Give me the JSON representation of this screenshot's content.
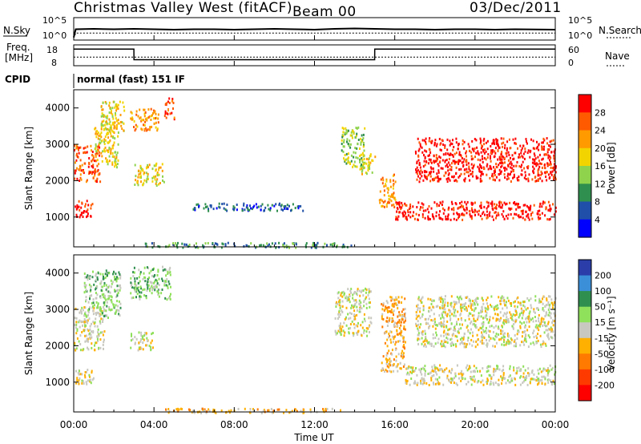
{
  "header": {
    "station": "Christmas Valley West (fitACF)",
    "beam": "Beam 00",
    "date": "03/Dec/2011"
  },
  "sidepanel": {
    "nsky_label": "N.Sky",
    "nsearch_label": "N.Search",
    "freq_label_1": "Freq.",
    "freq_label_2": "[MHz]",
    "nave_label": "Nave",
    "cpid_label": "CPID",
    "cpid_text": "normal (fast) 151 IF",
    "noise_ticks": [
      "10^5",
      "10^0"
    ],
    "freq_ticks": [
      "18",
      "8"
    ],
    "nave_ticks": [
      "60",
      "0"
    ]
  },
  "chart_data": [
    {
      "type": "line",
      "name": "noise",
      "ylabel_left": "N.Sky",
      "ylabel_right": "N.Search",
      "x": [
        0,
        0.1,
        1,
        2,
        3,
        4,
        5,
        6,
        7,
        8,
        9,
        10,
        11,
        12,
        13,
        14,
        15,
        16,
        17,
        18,
        19,
        20,
        21,
        22,
        24
      ],
      "series": [
        {
          "name": "N.Sky",
          "values": [
            0.3,
            2.4,
            2.5,
            2.4,
            2.5,
            2.4,
            2.3,
            2.4,
            2.4,
            2.3,
            2.4,
            2.5,
            2.4,
            2.3,
            2.5,
            2.6,
            2.5,
            2.4,
            2.4,
            2.3,
            2.4,
            2.4,
            2.3,
            2.4,
            2.3
          ]
        },
        {
          "name": "N.Search",
          "values": [
            0.1,
            1.4,
            1.4,
            1.4,
            1.4,
            1.4,
            1.4,
            1.4,
            1.4,
            1.4,
            1.4,
            1.4,
            1.4,
            1.4,
            1.4,
            1.4,
            1.4,
            1.4,
            1.4,
            1.4,
            1.4,
            1.4,
            1.4,
            1.4,
            1.4
          ]
        }
      ]
    },
    {
      "type": "line",
      "name": "frequency",
      "ylabel_left": "Freq. [MHz]",
      "ylabel_right": "Nave",
      "x": [
        0,
        3,
        3.001,
        15,
        15.001,
        24
      ],
      "series": [
        {
          "name": "Freq",
          "values": [
            16.5,
            16.5,
            10.5,
            10.5,
            16.5,
            16.5
          ]
        },
        {
          "name": "Nave",
          "values": [
            12,
            12,
            12,
            12,
            12,
            12
          ]
        }
      ]
    },
    {
      "type": "heatmap",
      "name": "power",
      "ylabel": "Slant Range [km]",
      "xlim": [
        0,
        24
      ],
      "ylim": [
        180,
        4500
      ],
      "colorbar_label": "Power [dB]",
      "colorbar_ticks": [
        "28",
        "24",
        "20",
        "16",
        "12",
        "8",
        "4"
      ],
      "colorbar_colors": [
        "#ff0000",
        "#ff5a00",
        "#ff9a00",
        "#f2d400",
        "#8fd34c",
        "#2f8f4e",
        "#1f4fa8",
        "#0000ff"
      ],
      "regions": [
        {
          "t0": 0.0,
          "t1": 0.9,
          "r0": 1000,
          "r1": 1500,
          "level": 7
        },
        {
          "t0": 0.0,
          "t1": 1.3,
          "r0": 2000,
          "r1": 3000,
          "level": 6
        },
        {
          "t0": 1.0,
          "t1": 2.2,
          "r0": 2400,
          "r1": 3600,
          "level": 4
        },
        {
          "t0": 1.3,
          "t1": 2.5,
          "r0": 3300,
          "r1": 4200,
          "level": 4
        },
        {
          "t0": 2.8,
          "t1": 4.2,
          "r0": 3400,
          "r1": 4000,
          "level": 5
        },
        {
          "t0": 3.0,
          "t1": 4.5,
          "r0": 1900,
          "r1": 2500,
          "level": 4
        },
        {
          "t0": 4.5,
          "t1": 5.0,
          "r0": 3700,
          "r1": 4300,
          "level": 6
        },
        {
          "t0": 5.8,
          "t1": 11.5,
          "r0": 1200,
          "r1": 1400,
          "level": 1
        },
        {
          "t0": 13.3,
          "t1": 14.5,
          "r0": 2400,
          "r1": 3500,
          "level": 3
        },
        {
          "t0": 14.2,
          "t1": 15.0,
          "r0": 2200,
          "r1": 2800,
          "level": 4
        },
        {
          "t0": 15.2,
          "t1": 16.0,
          "r0": 1300,
          "r1": 2200,
          "level": 5
        },
        {
          "t0": 16.0,
          "t1": 24.0,
          "r0": 950,
          "r1": 1450,
          "level": 7
        },
        {
          "t0": 17.0,
          "t1": 24.0,
          "r0": 2000,
          "r1": 3200,
          "level": 7
        },
        {
          "t0": 3.5,
          "t1": 13.8,
          "r0": 180,
          "r1": 320,
          "level": 2
        }
      ]
    },
    {
      "type": "heatmap",
      "name": "velocity",
      "ylabel": "Slant Range [km]",
      "xlabel": "Time UT",
      "xlim": [
        0,
        24
      ],
      "ylim": [
        180,
        4500
      ],
      "colorbar_label": "Velocity [m s⁻¹]",
      "colorbar_ticks": [
        "200",
        "100",
        "50",
        "15",
        "-15",
        "-50",
        "-100",
        "-200"
      ],
      "colorbar_colors": [
        "#2a3da8",
        "#3b8fd8",
        "#2f8f4e",
        "#8fe05a",
        "#c8c8c0",
        "#ffb000",
        "#ff7a00",
        "#ff3a00",
        "#ff0000"
      ],
      "regions": [
        {
          "t0": 0.0,
          "t1": 1.0,
          "r0": 950,
          "r1": 1400,
          "level": 4
        },
        {
          "t0": 0.0,
          "t1": 1.5,
          "r0": 1900,
          "r1": 3100,
          "level": 4
        },
        {
          "t0": 0.5,
          "t1": 2.3,
          "r0": 2800,
          "r1": 4100,
          "level": 5
        },
        {
          "t0": 2.8,
          "t1": 4.0,
          "r0": 1900,
          "r1": 2400,
          "level": 4
        },
        {
          "t0": 2.8,
          "t1": 4.8,
          "r0": 3300,
          "r1": 4200,
          "level": 5
        },
        {
          "t0": 13.0,
          "t1": 14.8,
          "r0": 2300,
          "r1": 3600,
          "level": 4
        },
        {
          "t0": 15.3,
          "t1": 16.5,
          "r0": 1300,
          "r1": 3400,
          "level": 3
        },
        {
          "t0": 16.5,
          "t1": 24.0,
          "r0": 950,
          "r1": 1500,
          "level": 4
        },
        {
          "t0": 17.0,
          "t1": 24.0,
          "r0": 2000,
          "r1": 3400,
          "level": 4
        },
        {
          "t0": 4.5,
          "t1": 13.8,
          "r0": 180,
          "r1": 300,
          "level": 3
        }
      ]
    }
  ],
  "axes": {
    "y_ticks": [
      "1000",
      "2000",
      "3000",
      "4000"
    ],
    "x_ticks": [
      "00:00",
      "04:00",
      "08:00",
      "12:00",
      "16:00",
      "20:00",
      "00:00"
    ],
    "xlabel": "Time UT"
  }
}
